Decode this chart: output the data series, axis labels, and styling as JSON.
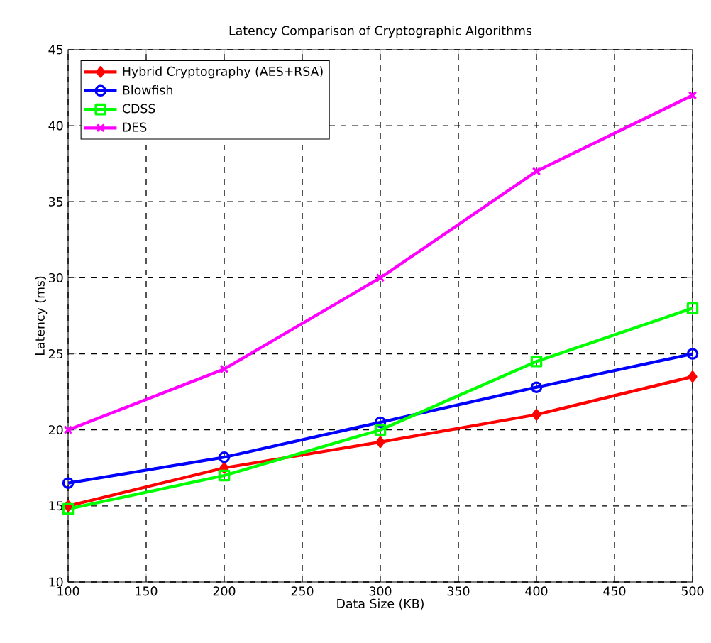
{
  "chart_data": {
    "type": "line",
    "title": "Latency Comparison of Cryptographic Algorithms",
    "xlabel": "Data Size (KB)",
    "ylabel": "Latency (ms)",
    "x": [
      100,
      200,
      300,
      400,
      500
    ],
    "series": [
      {
        "name": "Hybrid Cryptography (AES+RSA)",
        "color": "#ff0000",
        "marker": "diamond",
        "values": [
          15,
          17.5,
          19.2,
          21,
          23.5
        ]
      },
      {
        "name": "Blowfish",
        "color": "#0000ff",
        "marker": "circle",
        "values": [
          16.5,
          18.2,
          20.5,
          22.8,
          25
        ]
      },
      {
        "name": "CDSS",
        "color": "#00ff00",
        "marker": "square",
        "values": [
          14.8,
          17,
          20,
          24.5,
          28
        ]
      },
      {
        "name": "DES",
        "color": "#ff00ff",
        "marker": "cross",
        "values": [
          20,
          24,
          30,
          37,
          42
        ]
      }
    ],
    "xlim": [
      100,
      500
    ],
    "xticks": [
      100,
      150,
      200,
      250,
      300,
      350,
      400,
      450,
      500
    ],
    "ylim": [
      10,
      45
    ],
    "yticks": [
      10,
      15,
      20,
      25,
      30,
      35,
      40,
      45
    ],
    "grid": true,
    "legend": "top left",
    "line_style": "solid"
  }
}
